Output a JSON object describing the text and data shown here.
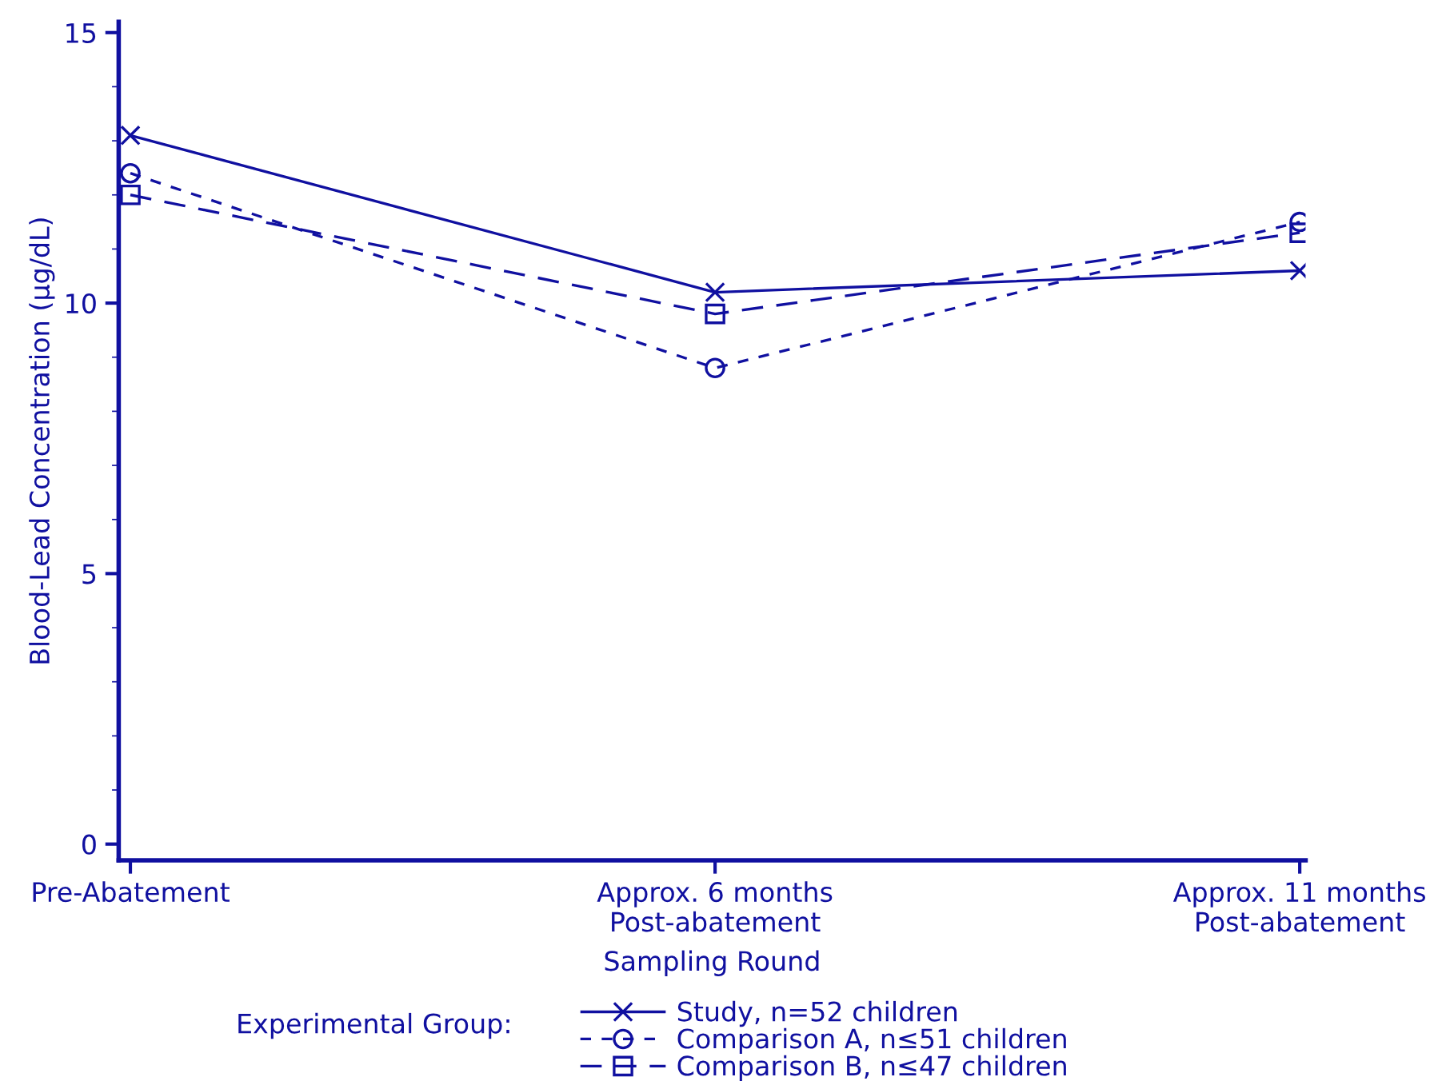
{
  "chart_data": {
    "type": "line",
    "xlabel": "Sampling Round",
    "ylabel": "Blood-Lead Concentration (μg/dL)",
    "legend_title": "Experimental Group:",
    "categories": [
      "Pre-Abatement",
      "Approx. 6 months\nPost-abatement",
      "Approx. 11 months\nPost-abatement"
    ],
    "series": [
      {
        "name": "Study, n=52 children",
        "color": "#1010a0",
        "values": [
          13.1,
          10.2,
          10.6
        ],
        "marker": "cross",
        "line_style": "solid"
      },
      {
        "name": "Comparison A, n≤51 children",
        "color": "#1010a0",
        "values": [
          12.4,
          8.8,
          11.5
        ],
        "marker": "circle",
        "line_style": "dotted"
      },
      {
        "name": "Comparison B, n≤47 children",
        "color": "#1010a0",
        "values": [
          12.0,
          9.8,
          11.3
        ],
        "marker": "square",
        "line_style": "dashed"
      }
    ],
    "ylim": [
      -0.3,
      15.2
    ],
    "yticks": [
      0,
      5,
      10,
      15
    ],
    "grid": false,
    "legend": "bottom"
  }
}
